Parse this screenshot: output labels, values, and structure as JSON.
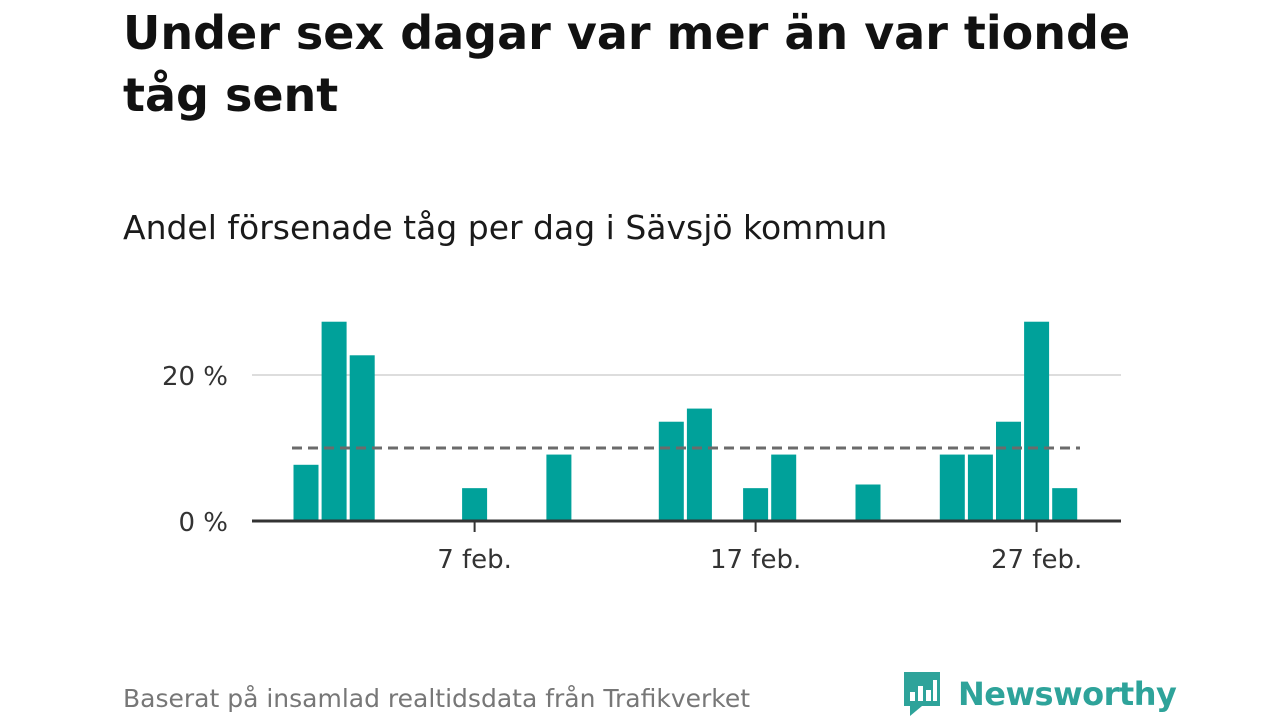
{
  "headline": "Under sex dagar var mer än var tionde tåg sent",
  "footer": {
    "source": "Baserat på insamlad realtidsdata från Trafikverket",
    "brand": "Newsworthy"
  },
  "colors": {
    "bar": "#00a19a",
    "reference_line": "#6b6b6b",
    "grid": "#dddddd",
    "axis": "#333333",
    "brand": "#2ea39a"
  },
  "chart_data": {
    "type": "bar",
    "title": "Andel försenade tåg per dag i Sävsjö kommun",
    "xlabel": "",
    "ylabel": "",
    "ylim": [
      0,
      30
    ],
    "grid": "horizontal",
    "y_ticks": [
      {
        "value": 0,
        "label": "0 %"
      },
      {
        "value": 20,
        "label": "20 %"
      }
    ],
    "x_ticks": [
      {
        "day": 7,
        "label": "7 feb."
      },
      {
        "day": 17,
        "label": "17 feb."
      },
      {
        "day": 27,
        "label": "27 feb."
      }
    ],
    "reference_line": {
      "value": 10,
      "style": "dashed"
    },
    "categories": [
      "1 feb.",
      "2 feb.",
      "3 feb.",
      "4 feb.",
      "5 feb.",
      "6 feb.",
      "7 feb.",
      "8 feb.",
      "9 feb.",
      "10 feb.",
      "11 feb.",
      "12 feb.",
      "13 feb.",
      "14 feb.",
      "15 feb.",
      "16 feb.",
      "17 feb.",
      "18 feb.",
      "19 feb.",
      "20 feb.",
      "21 feb.",
      "22 feb.",
      "23 feb.",
      "24 feb.",
      "25 feb.",
      "26 feb.",
      "27 feb.",
      "28 feb."
    ],
    "values": [
      7.7,
      27.3,
      22.7,
      0,
      0,
      0,
      4.5,
      0,
      0,
      9.1,
      0,
      0,
      0,
      13.6,
      15.4,
      0,
      4.5,
      9.1,
      0,
      0,
      5.0,
      0,
      0,
      9.1,
      9.1,
      13.6,
      27.3,
      4.5
    ]
  }
}
